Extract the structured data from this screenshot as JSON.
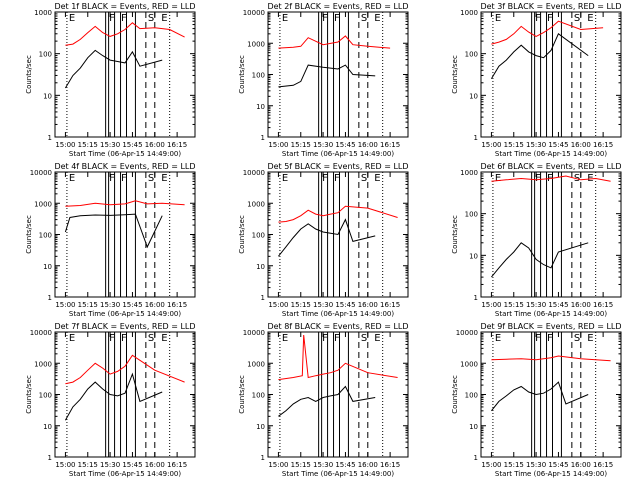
{
  "figure": {
    "background": "#ffffff",
    "line_color_events": "#000000",
    "line_color_lld": "#ff0000"
  },
  "chart_data": [
    {
      "type": "line",
      "title": "Det 1f BLACK = Events, RED = LLD",
      "xlabel": "Start Time (06-Apr-15 14:49:00)",
      "ylabel": "Counts/sec",
      "y_log": true,
      "ylim": [
        1,
        1000
      ],
      "y_ticks": [
        "1",
        "10",
        "100",
        "1000"
      ],
      "x_ticks": [
        "15:00",
        "15:15",
        "15:30",
        "15:45",
        "16:00",
        "16:15"
      ],
      "markers": [
        "E",
        "F",
        "F",
        "S",
        "E"
      ],
      "series": [
        {
          "name": "Events",
          "color": "#000000",
          "x": [
            "15:00",
            "15:05",
            "15:10",
            "15:15",
            "15:20",
            "15:25",
            "15:30",
            "15:35",
            "15:40",
            "15:45",
            "15:50",
            "16:05"
          ],
          "y": [
            15,
            30,
            45,
            80,
            120,
            90,
            70,
            65,
            60,
            110,
            50,
            70
          ]
        },
        {
          "name": "LLD",
          "color": "#ff0000",
          "x": [
            "15:00",
            "15:05",
            "15:10",
            "15:15",
            "15:20",
            "15:25",
            "15:30",
            "15:35",
            "15:40",
            "15:45",
            "15:50",
            "16:00",
            "16:10",
            "16:20"
          ],
          "y": [
            160,
            170,
            220,
            320,
            450,
            320,
            260,
            300,
            380,
            550,
            400,
            420,
            380,
            250
          ]
        }
      ]
    },
    {
      "type": "line",
      "title": "Det 2f BLACK = Events, RED = LLD",
      "xlabel": "Start Time (06-Apr-15 14:49:00)",
      "ylabel": "Counts/sec",
      "y_log": true,
      "ylim": [
        1,
        10000
      ],
      "y_ticks": [
        "1",
        "10",
        "100",
        "1000",
        "10000"
      ],
      "x_ticks": [
        "15:00",
        "15:15",
        "15:30",
        "15:45",
        "16:00",
        "16:15"
      ],
      "markers": [
        "E",
        "F",
        "F",
        "S",
        "E"
      ],
      "series": [
        {
          "name": "Events",
          "color": "#000000",
          "x": [
            "15:00",
            "15:10",
            "15:15",
            "15:20",
            "15:30",
            "15:40",
            "15:45",
            "15:50",
            "16:05"
          ],
          "y": [
            40,
            45,
            60,
            200,
            170,
            150,
            200,
            100,
            90
          ]
        },
        {
          "name": "LLD",
          "color": "#ff0000",
          "x": [
            "15:00",
            "15:10",
            "15:15",
            "15:20",
            "15:30",
            "15:40",
            "15:45",
            "15:50",
            "16:00",
            "16:15"
          ],
          "y": [
            700,
            750,
            800,
            1500,
            900,
            1100,
            1700,
            900,
            800,
            700
          ]
        }
      ]
    },
    {
      "type": "line",
      "title": "Det 3f BLACK = Events, RED = LLD",
      "xlabel": "Start Time (06-Apr-15 14:49:00)",
      "ylabel": "Counts/sec",
      "y_log": true,
      "ylim": [
        1,
        1000
      ],
      "y_ticks": [
        "1",
        "10",
        "100",
        "1000"
      ],
      "x_ticks": [
        "15:00",
        "15:15",
        "15:30",
        "15:45",
        "16:00",
        "16:15"
      ],
      "markers": [
        "E",
        "F",
        "F",
        "S",
        "E"
      ],
      "series": [
        {
          "name": "Events",
          "color": "#000000",
          "x": [
            "15:00",
            "15:05",
            "15:10",
            "15:15",
            "15:20",
            "15:25",
            "15:30",
            "15:35",
            "15:40",
            "15:45",
            "16:05"
          ],
          "y": [
            25,
            50,
            70,
            110,
            160,
            110,
            90,
            80,
            120,
            300,
            90
          ]
        },
        {
          "name": "LLD",
          "color": "#ff0000",
          "x": [
            "15:00",
            "15:05",
            "15:10",
            "15:15",
            "15:20",
            "15:25",
            "15:30",
            "15:35",
            "15:40",
            "15:45",
            "16:00",
            "16:15"
          ],
          "y": [
            170,
            190,
            220,
            300,
            450,
            330,
            260,
            320,
            420,
            600,
            380,
            420
          ]
        }
      ]
    },
    {
      "type": "line",
      "title": "Det 4f BLACK = Events, RED = LLD",
      "xlabel": "Start Time (06-Apr-15 14:49:00)",
      "ylabel": "Counts/sec",
      "y_log": true,
      "ylim": [
        1,
        10000
      ],
      "y_ticks": [
        "1",
        "10",
        "100",
        "1000",
        "10000"
      ],
      "x_ticks": [
        "15:00",
        "15:15",
        "15:30",
        "15:45",
        "16:00",
        "16:15"
      ],
      "markers": [
        "E",
        "F",
        "F",
        "S",
        "E"
      ],
      "series": [
        {
          "name": "Events",
          "color": "#000000",
          "x": [
            "15:00",
            "15:03",
            "15:10",
            "15:20",
            "15:30",
            "15:40",
            "15:47",
            "15:55",
            "16:05"
          ],
          "y": [
            120,
            350,
            400,
            420,
            410,
            430,
            450,
            40,
            400
          ]
        },
        {
          "name": "LLD",
          "color": "#ff0000",
          "x": [
            "15:00",
            "15:10",
            "15:20",
            "15:30",
            "15:40",
            "15:47",
            "15:55",
            "16:05",
            "16:20"
          ],
          "y": [
            800,
            850,
            1000,
            900,
            950,
            1200,
            950,
            1000,
            900
          ]
        }
      ]
    },
    {
      "type": "line",
      "title": "Det 5f BLACK = Events, RED = LLD",
      "xlabel": "Start Time (06-Apr-15 14:49:00)",
      "ylabel": "Counts/sec",
      "y_log": true,
      "ylim": [
        1,
        10000
      ],
      "y_ticks": [
        "1",
        "10",
        "100",
        "1000",
        "10000"
      ],
      "x_ticks": [
        "15:00",
        "15:15",
        "15:30",
        "15:45",
        "16:00",
        "16:15"
      ],
      "markers": [
        "E",
        "F",
        "F",
        "S",
        "E"
      ],
      "series": [
        {
          "name": "Events",
          "color": "#000000",
          "x": [
            "15:00",
            "15:05",
            "15:10",
            "15:15",
            "15:20",
            "15:25",
            "15:30",
            "15:35",
            "15:40",
            "15:45",
            "15:50",
            "16:05"
          ],
          "y": [
            20,
            40,
            80,
            150,
            220,
            150,
            120,
            110,
            100,
            300,
            60,
            90
          ]
        },
        {
          "name": "LLD",
          "color": "#ff0000",
          "x": [
            "15:00",
            "15:05",
            "15:10",
            "15:15",
            "15:20",
            "15:25",
            "15:30",
            "15:35",
            "15:40",
            "15:45",
            "16:00",
            "16:20"
          ],
          "y": [
            250,
            260,
            300,
            400,
            600,
            450,
            400,
            450,
            500,
            800,
            700,
            350
          ]
        }
      ]
    },
    {
      "type": "line",
      "title": "Det 6f BLACK = Events, RED = LLD",
      "xlabel": "Start Time (06-Apr-15 14:49:00)",
      "ylabel": "Counts/sec",
      "y_log": true,
      "ylim": [
        1,
        1000
      ],
      "y_ticks": [
        "1",
        "10",
        "100",
        "1000"
      ],
      "x_ticks": [
        "15:00",
        "15:15",
        "15:30",
        "15:45",
        "16:00",
        "16:15"
      ],
      "markers": [
        "E",
        "F",
        "F",
        "S",
        "E"
      ],
      "series": [
        {
          "name": "Events",
          "color": "#000000",
          "x": [
            "15:00",
            "15:05",
            "15:10",
            "15:15",
            "15:20",
            "15:25",
            "15:30",
            "15:35",
            "15:40",
            "15:45",
            "16:05"
          ],
          "y": [
            3,
            5,
            8,
            12,
            20,
            15,
            8,
            6,
            5,
            12,
            20
          ]
        },
        {
          "name": "LLD",
          "color": "#ff0000",
          "x": [
            "15:00",
            "15:10",
            "15:20",
            "15:30",
            "15:40",
            "15:50",
            "16:00",
            "16:10",
            "16:20"
          ],
          "y": [
            600,
            650,
            700,
            650,
            700,
            800,
            650,
            700,
            600
          ]
        }
      ]
    },
    {
      "type": "line",
      "title": "Det 7f BLACK = Events, RED = LLD",
      "xlabel": "Start Time (06-Apr-15 14:49:00)",
      "ylabel": "Counts/sec",
      "y_log": true,
      "ylim": [
        1,
        10000
      ],
      "y_ticks": [
        "1",
        "10",
        "100",
        "1000",
        "10000"
      ],
      "x_ticks": [
        "15:00",
        "15:15",
        "15:30",
        "15:45",
        "16:00",
        "16:15"
      ],
      "markers": [
        "E",
        "F",
        "F",
        "S",
        "E"
      ],
      "series": [
        {
          "name": "Events",
          "color": "#000000",
          "x": [
            "15:00",
            "15:05",
            "15:10",
            "15:15",
            "15:20",
            "15:25",
            "15:30",
            "15:35",
            "15:40",
            "15:45",
            "15:50",
            "16:05"
          ],
          "y": [
            15,
            40,
            70,
            150,
            250,
            150,
            100,
            90,
            110,
            450,
            60,
            120
          ]
        },
        {
          "name": "LLD",
          "color": "#ff0000",
          "x": [
            "15:00",
            "15:05",
            "15:10",
            "15:15",
            "15:20",
            "15:25",
            "15:30",
            "15:35",
            "15:40",
            "15:45",
            "16:00",
            "16:20"
          ],
          "y": [
            220,
            250,
            350,
            600,
            1000,
            700,
            450,
            550,
            800,
            1800,
            600,
            250
          ]
        }
      ]
    },
    {
      "type": "line",
      "title": "Det 8f BLACK = Events, RED = LLD",
      "xlabel": "Start Time (06-Apr-15 14:49:00)",
      "ylabel": "Counts/sec",
      "y_log": true,
      "ylim": [
        1,
        10000
      ],
      "y_ticks": [
        "1",
        "10",
        "100",
        "1000",
        "10000"
      ],
      "x_ticks": [
        "15:00",
        "15:15",
        "15:30",
        "15:45",
        "16:00",
        "16:15"
      ],
      "markers": [
        "E",
        "F",
        "F",
        "S",
        "E"
      ],
      "series": [
        {
          "name": "Events",
          "color": "#000000",
          "x": [
            "15:00",
            "15:05",
            "15:10",
            "15:15",
            "15:20",
            "15:25",
            "15:30",
            "15:35",
            "15:40",
            "15:45",
            "15:50",
            "16:05"
          ],
          "y": [
            20,
            30,
            50,
            70,
            80,
            60,
            80,
            90,
            100,
            180,
            60,
            80
          ]
        },
        {
          "name": "LLD",
          "color": "#ff0000",
          "x": [
            "15:00",
            "15:10",
            "15:16",
            "15:17",
            "15:20",
            "15:25",
            "15:30",
            "15:35",
            "15:40",
            "15:45",
            "16:00",
            "16:20"
          ],
          "y": [
            300,
            350,
            400,
            8000,
            350,
            400,
            450,
            500,
            600,
            1000,
            500,
            350
          ]
        }
      ]
    },
    {
      "type": "line",
      "title": "Det 9f BLACK = Events, RED = LLD",
      "xlabel": "Start Time (06-Apr-15 14:49:00)",
      "ylabel": "Counts/sec",
      "y_log": true,
      "ylim": [
        1,
        10000
      ],
      "y_ticks": [
        "1",
        "10",
        "100",
        "1000",
        "10000"
      ],
      "x_ticks": [
        "15:00",
        "15:15",
        "15:30",
        "15:45",
        "16:00",
        "16:15"
      ],
      "markers": [
        "E",
        "F",
        "F",
        "S",
        "E"
      ],
      "series": [
        {
          "name": "Events",
          "color": "#000000",
          "x": [
            "15:00",
            "15:05",
            "15:10",
            "15:15",
            "15:20",
            "15:25",
            "15:30",
            "15:35",
            "15:40",
            "15:45",
            "15:50",
            "16:05"
          ],
          "y": [
            30,
            60,
            90,
            140,
            180,
            120,
            100,
            110,
            150,
            250,
            50,
            100
          ]
        },
        {
          "name": "LLD",
          "color": "#ff0000",
          "x": [
            "15:00",
            "15:10",
            "15:20",
            "15:30",
            "15:40",
            "15:45",
            "16:00",
            "16:20"
          ],
          "y": [
            1300,
            1350,
            1400,
            1300,
            1500,
            1700,
            1400,
            1200
          ]
        }
      ]
    }
  ]
}
